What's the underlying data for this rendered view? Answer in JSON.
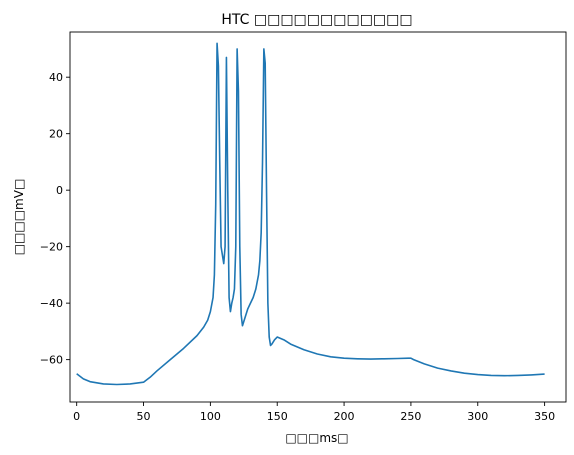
{
  "chart_data": {
    "type": "line",
    "title": "HTC □□□□□□□□□□□□",
    "xlabel": "□□□ms□",
    "ylabel": "□□□□mV□",
    "xlim": [
      -5,
      366
    ],
    "ylim": [
      -75,
      56
    ],
    "xticks": [
      0,
      50,
      100,
      150,
      200,
      250,
      300,
      350
    ],
    "yticks": [
      -60,
      -40,
      -20,
      0,
      20,
      40
    ],
    "grid": false,
    "colors": {
      "line": "#1f77b4",
      "axes": "#000000"
    },
    "series": [
      {
        "name": "",
        "x": [
          0,
          5,
          10,
          20,
          30,
          40,
          45,
          50,
          55,
          60,
          70,
          80,
          90,
          95,
          98,
          100,
          102,
          103,
          104,
          105,
          106,
          107,
          108,
          110,
          111,
          112,
          113,
          114,
          115,
          116,
          117,
          118,
          119,
          120,
          121,
          122,
          123,
          124,
          126,
          128,
          130,
          132,
          134,
          136,
          137,
          138,
          139,
          140,
          141,
          142,
          143,
          144,
          145,
          146,
          148,
          150,
          155,
          160,
          170,
          180,
          190,
          200,
          210,
          220,
          230,
          240,
          248,
          250,
          252,
          260,
          270,
          280,
          290,
          300,
          310,
          320,
          330,
          340,
          350
        ],
        "y": [
          -65,
          -66.8,
          -67.8,
          -68.6,
          -68.8,
          -68.6,
          -68.3,
          -68,
          -66.2,
          -64,
          -60,
          -56,
          -51.5,
          -48.5,
          -46,
          -43,
          -38,
          -30,
          -5,
          52,
          44,
          10,
          -20,
          -26,
          -20,
          47,
          0,
          -38,
          -43,
          -40,
          -38,
          -35,
          -20,
          50,
          35,
          -20,
          -44,
          -48,
          -45,
          -42,
          -40,
          -38,
          -35,
          -30,
          -25,
          -15,
          10,
          50,
          45,
          0,
          -40,
          -52,
          -55,
          -54.5,
          -53,
          -52,
          -53,
          -54.5,
          -56.5,
          -58,
          -59,
          -59.5,
          -59.7,
          -59.8,
          -59.7,
          -59.6,
          -59.5,
          -59.5,
          -60,
          -61.5,
          -63,
          -64,
          -64.8,
          -65.3,
          -65.6,
          -65.7,
          -65.6,
          -65.4,
          -65.1
        ]
      }
    ]
  }
}
